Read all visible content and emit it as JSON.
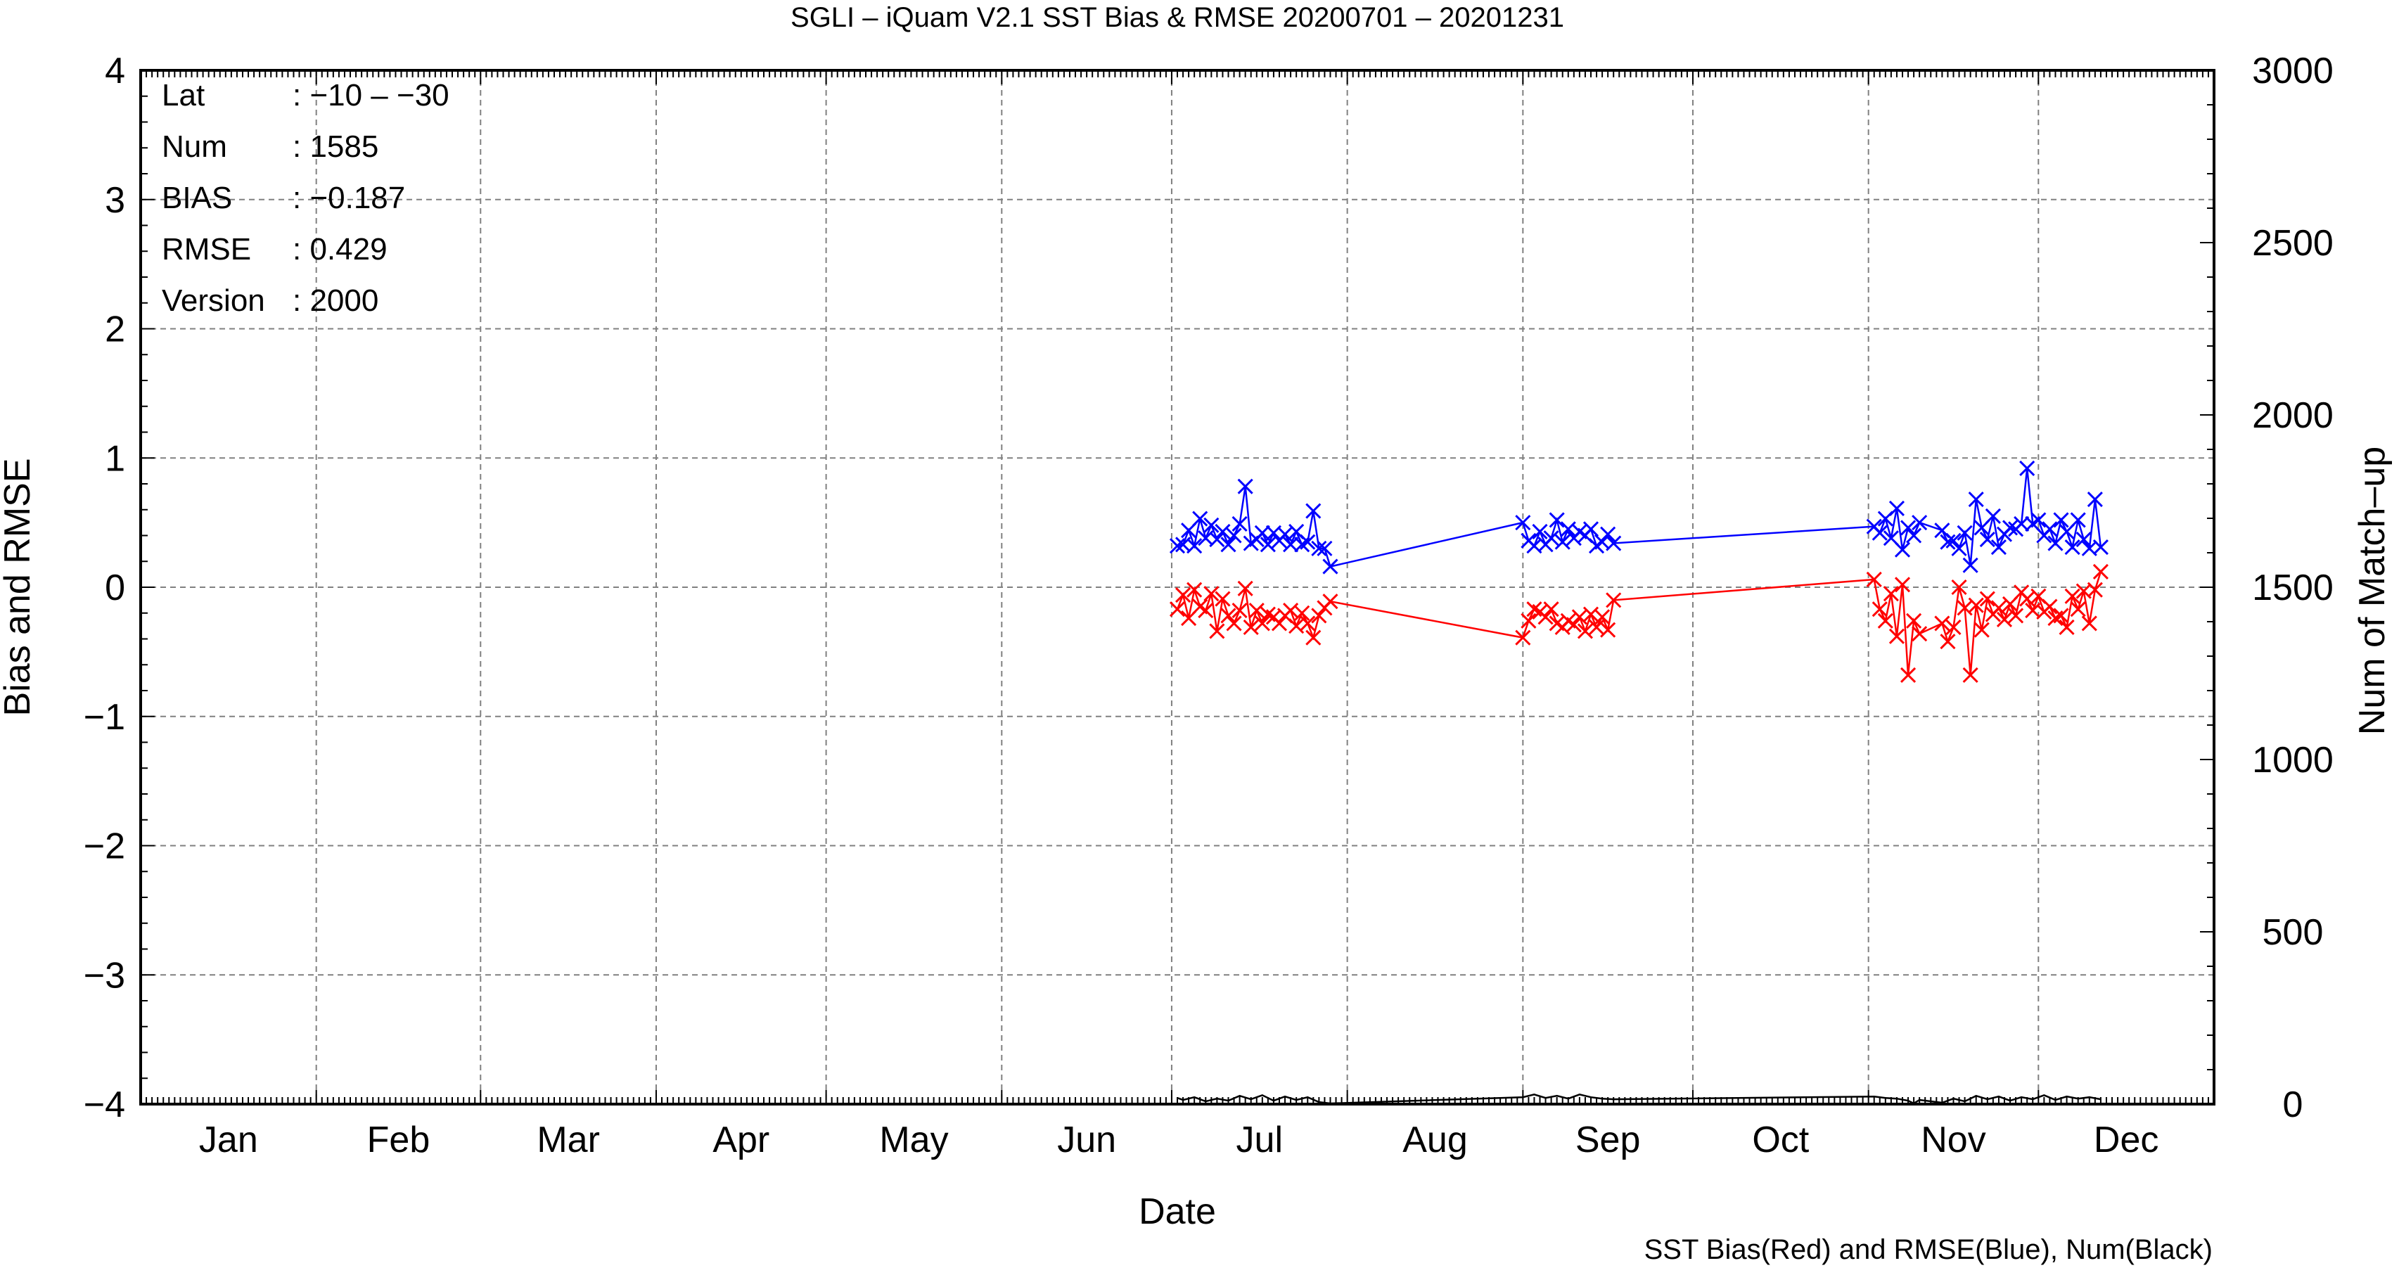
{
  "chart_data": {
    "type": "line",
    "title": "SGLI – iQuam V2.1 SST Bias & RMSE 20200701 – 20201231",
    "xlabel": "Date",
    "ylabel": "Bias and RMSE",
    "y2label": "Num of Match–up",
    "footer": "SST Bias(Red) and RMSE(Blue), Num(Black)",
    "ylim": [
      -4,
      4
    ],
    "y2lim": [
      0,
      3000
    ],
    "yticks": [
      "4",
      "3",
      "2",
      "1",
      "0",
      "−1",
      "−2",
      "−3",
      "−4"
    ],
    "y2ticks": [
      "3000",
      "2500",
      "2000",
      "1500",
      "1000",
      "500",
      "0"
    ],
    "months": [
      "Jan",
      "Feb",
      "Mar",
      "Apr",
      "May",
      "Jun",
      "Jul",
      "Aug",
      "Sep",
      "Oct",
      "Nov",
      "Dec"
    ],
    "grid": true,
    "info": [
      {
        "key": "Lat",
        "value": ": −10 – −30"
      },
      {
        "key": "Num",
        "value": ": 1585"
      },
      {
        "key": "BIAS",
        "value": ": −0.187"
      },
      {
        "key": "RMSE",
        "value": ": 0.429"
      },
      {
        "key": "Version",
        "value": ": 2000"
      }
    ],
    "colors": {
      "bias": "#ff0000",
      "rmse": "#0000ff",
      "num": "#000000",
      "grid": "#808080"
    },
    "series": [
      {
        "key": "rmse",
        "x": [
          183,
          184,
          185,
          186,
          187,
          188,
          189,
          190,
          191,
          192,
          193,
          194,
          195,
          196,
          197,
          198,
          199,
          200,
          201,
          202,
          203,
          204,
          205,
          206,
          207,
          208,
          209,
          210,
          244,
          245,
          246,
          247,
          248,
          249,
          250,
          251,
          252,
          253,
          254,
          255,
          256,
          257,
          258,
          259,
          260,
          306,
          307,
          308,
          309,
          310,
          311,
          312,
          313,
          314,
          318,
          319,
          320,
          321,
          322,
          323,
          324,
          325,
          326,
          327,
          328,
          329,
          330,
          331,
          332,
          333,
          334,
          335,
          336,
          337,
          338,
          339,
          340,
          341,
          342,
          343,
          344,
          345,
          346
        ],
        "y": [
          0.32,
          0.33,
          0.44,
          0.32,
          0.53,
          0.38,
          0.48,
          0.37,
          0.43,
          0.33,
          0.4,
          0.49,
          0.78,
          0.34,
          0.37,
          0.42,
          0.33,
          0.42,
          0.36,
          0.41,
          0.33,
          0.43,
          0.33,
          0.35,
          0.59,
          0.3,
          0.3,
          0.16,
          0.5,
          0.36,
          0.32,
          0.43,
          0.33,
          0.38,
          0.52,
          0.35,
          0.45,
          0.38,
          0.43,
          0.4,
          0.45,
          0.32,
          0.35,
          0.41,
          0.34,
          0.47,
          0.42,
          0.53,
          0.38,
          0.61,
          0.29,
          0.46,
          0.4,
          0.5,
          0.44,
          0.35,
          0.36,
          0.3,
          0.42,
          0.17,
          0.68,
          0.46,
          0.37,
          0.55,
          0.31,
          0.41,
          0.46,
          0.45,
          0.49,
          0.92,
          0.49,
          0.52,
          0.4,
          0.45,
          0.34,
          0.52,
          0.43,
          0.31,
          0.52,
          0.37,
          0.3,
          0.68,
          0.31
        ]
      },
      {
        "key": "bias",
        "x": [
          183,
          184,
          185,
          186,
          187,
          188,
          189,
          190,
          191,
          192,
          193,
          194,
          195,
          196,
          197,
          198,
          199,
          200,
          201,
          202,
          203,
          204,
          205,
          206,
          207,
          208,
          209,
          210,
          244,
          245,
          246,
          247,
          248,
          249,
          250,
          251,
          252,
          253,
          254,
          255,
          256,
          257,
          258,
          259,
          260,
          306,
          307,
          308,
          309,
          310,
          311,
          312,
          313,
          314,
          318,
          319,
          320,
          321,
          322,
          323,
          324,
          325,
          326,
          327,
          328,
          329,
          330,
          331,
          332,
          333,
          334,
          335,
          336,
          337,
          338,
          339,
          340,
          341,
          342,
          343,
          344,
          345,
          346
        ],
        "y": [
          -0.17,
          -0.06,
          -0.24,
          -0.02,
          -0.15,
          -0.18,
          -0.05,
          -0.34,
          -0.09,
          -0.22,
          -0.28,
          -0.18,
          -0.01,
          -0.31,
          -0.18,
          -0.28,
          -0.21,
          -0.23,
          -0.28,
          -0.22,
          -0.18,
          -0.3,
          -0.2,
          -0.28,
          -0.39,
          -0.22,
          -0.16,
          -0.11,
          -0.39,
          -0.26,
          -0.17,
          -0.19,
          -0.23,
          -0.17,
          -0.28,
          -0.31,
          -0.26,
          -0.29,
          -0.23,
          -0.34,
          -0.21,
          -0.31,
          -0.23,
          -0.33,
          -0.1,
          0.06,
          -0.17,
          -0.26,
          -0.05,
          -0.38,
          0.02,
          -0.68,
          -0.26,
          -0.36,
          -0.28,
          -0.42,
          -0.31,
          0.0,
          -0.16,
          -0.68,
          -0.14,
          -0.33,
          -0.09,
          -0.21,
          -0.16,
          -0.25,
          -0.13,
          -0.22,
          -0.04,
          -0.09,
          -0.18,
          -0.07,
          -0.19,
          -0.15,
          -0.24,
          -0.22,
          -0.31,
          -0.07,
          -0.17,
          -0.03,
          -0.28,
          -0.02,
          0.12
        ]
      },
      {
        "key": "num",
        "x": [
          183,
          184,
          186,
          188,
          190,
          192,
          194,
          196,
          198,
          200,
          202,
          204,
          206,
          208,
          210,
          244,
          246,
          248,
          250,
          252,
          254,
          256,
          258,
          260,
          306,
          308,
          310,
          312,
          313,
          314,
          318,
          320,
          322,
          324,
          326,
          328,
          330,
          332,
          334,
          336,
          338,
          340,
          342,
          344,
          346
        ],
        "y": [
          18,
          12,
          20,
          8,
          16,
          10,
          24,
          14,
          26,
          10,
          22,
          12,
          20,
          6,
          2,
          20,
          28,
          18,
          24,
          16,
          28,
          20,
          16,
          14,
          22,
          18,
          16,
          10,
          2,
          12,
          4,
          16,
          8,
          24,
          14,
          22,
          10,
          20,
          14,
          26,
          12,
          22,
          16,
          20,
          14
        ]
      }
    ]
  }
}
